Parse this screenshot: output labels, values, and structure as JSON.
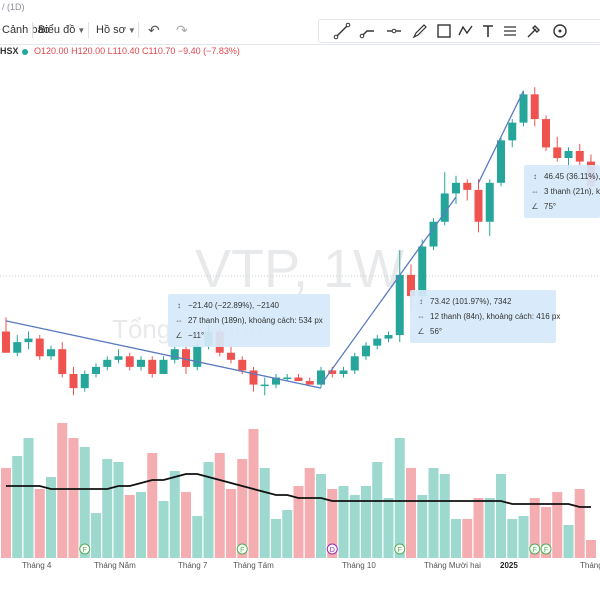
{
  "topline": {
    "text": "/ (1D)"
  },
  "toolbar": {
    "alert_label": "Cảnh báo",
    "chart_label": "Biểu đồ",
    "profile_label": "Hồ sơ",
    "undo_icon": "undo-icon",
    "redo_icon": "redo-icon"
  },
  "drawing_tools": [
    "trend-line-icon",
    "ray-icon",
    "horizontal-line-icon",
    "pen-icon",
    "rectangle-icon",
    "zigzag-icon",
    "text-icon",
    "fibonacci-icon",
    "pipette-icon",
    "circle-icon"
  ],
  "symbol": {
    "exchange": "HSX",
    "open": "O120.00",
    "high": "H120.00",
    "low": "L110.40",
    "close": "C110.70",
    "change": "−9.40 (−7.83%)"
  },
  "watermark": {
    "main": "VTP, 1W",
    "sub": "Tổng... chính"
  },
  "measurements": [
    {
      "l1": "−21.40 (−22.89%), −2140",
      "l2": "27 thanh (189n), khoảng cách: 534 px",
      "l3": "−11°"
    },
    {
      "l1": "73.42 (101.97%), 7342",
      "l2": "12 thanh (84n), khoảng cách: 416 px",
      "l3": "56°"
    },
    {
      "l1": "46.45 (36.11%), ",
      "l2": "3 thanh (21n), kh",
      "l3": "75°"
    }
  ],
  "x_labels": [
    "Tháng 4",
    "Tháng Năm",
    "Tháng 7",
    "Tháng Tám",
    "Tháng 10",
    "Tháng Mười hai",
    "2025",
    "Tháng"
  ],
  "event_markers": [
    "F",
    "F",
    "D",
    "F",
    "F",
    "F"
  ],
  "colors": {
    "up": "#26a69a",
    "down": "#ef5350",
    "vol_up": "#9ed9cf",
    "vol_down": "#f4adb0",
    "measure_bg": "#d6e9fa",
    "trend_line": "#5b7bc0"
  },
  "chart_data": {
    "type": "candlestick",
    "title": "VTP, 1W",
    "exchange": "HSX",
    "x_labels": [
      "Tháng 4",
      "Tháng Năm",
      "Tháng 7",
      "Tháng Tám",
      "Tháng 10",
      "Tháng Mười hai",
      "2025",
      "Tháng"
    ],
    "candles": [
      {
        "o": 70,
        "h": 74,
        "l": 64,
        "c": 64
      },
      {
        "o": 64,
        "h": 69,
        "l": 63,
        "c": 67
      },
      {
        "o": 67,
        "h": 70,
        "l": 65,
        "c": 68
      },
      {
        "o": 68,
        "h": 69,
        "l": 62,
        "c": 63
      },
      {
        "o": 63,
        "h": 66,
        "l": 62,
        "c": 65
      },
      {
        "o": 65,
        "h": 67,
        "l": 57,
        "c": 58
      },
      {
        "o": 58,
        "h": 60,
        "l": 52,
        "c": 54
      },
      {
        "o": 54,
        "h": 59,
        "l": 53,
        "c": 58
      },
      {
        "o": 58,
        "h": 61,
        "l": 57,
        "c": 60
      },
      {
        "o": 60,
        "h": 63,
        "l": 59,
        "c": 62
      },
      {
        "o": 62,
        "h": 65,
        "l": 61,
        "c": 63
      },
      {
        "o": 63,
        "h": 64,
        "l": 59,
        "c": 60
      },
      {
        "o": 60,
        "h": 63,
        "l": 59,
        "c": 62
      },
      {
        "o": 62,
        "h": 63,
        "l": 57,
        "c": 58
      },
      {
        "o": 58,
        "h": 63,
        "l": 58,
        "c": 62
      },
      {
        "o": 62,
        "h": 66,
        "l": 61,
        "c": 65
      },
      {
        "o": 65,
        "h": 66,
        "l": 58,
        "c": 60
      },
      {
        "o": 60,
        "h": 67,
        "l": 59,
        "c": 66
      },
      {
        "o": 66,
        "h": 72,
        "l": 65,
        "c": 70
      },
      {
        "o": 70,
        "h": 71,
        "l": 63,
        "c": 64
      },
      {
        "o": 64,
        "h": 66,
        "l": 61,
        "c": 62
      },
      {
        "o": 62,
        "h": 63,
        "l": 58,
        "c": 59
      },
      {
        "o": 59,
        "h": 60,
        "l": 53,
        "c": 55
      },
      {
        "o": 55,
        "h": 57,
        "l": 52,
        "c": 55
      },
      {
        "o": 55,
        "h": 58,
        "l": 54,
        "c": 57
      },
      {
        "o": 57,
        "h": 58,
        "l": 56,
        "c": 57
      },
      {
        "o": 57,
        "h": 58,
        "l": 56,
        "c": 56
      },
      {
        "o": 56,
        "h": 57,
        "l": 55,
        "c": 55
      },
      {
        "o": 55,
        "h": 60,
        "l": 54,
        "c": 59
      },
      {
        "o": 59,
        "h": 60,
        "l": 57,
        "c": 58
      },
      {
        "o": 58,
        "h": 60,
        "l": 57,
        "c": 59
      },
      {
        "o": 59,
        "h": 64,
        "l": 58,
        "c": 63
      },
      {
        "o": 63,
        "h": 67,
        "l": 62,
        "c": 66
      },
      {
        "o": 66,
        "h": 69,
        "l": 65,
        "c": 68
      },
      {
        "o": 68,
        "h": 70,
        "l": 67,
        "c": 69
      },
      {
        "o": 69,
        "h": 93,
        "l": 67,
        "c": 86
      },
      {
        "o": 86,
        "h": 89,
        "l": 76,
        "c": 80
      },
      {
        "o": 80,
        "h": 96,
        "l": 78,
        "c": 94
      },
      {
        "o": 94,
        "h": 102,
        "l": 93,
        "c": 101
      },
      {
        "o": 101,
        "h": 115,
        "l": 100,
        "c": 109
      },
      {
        "o": 109,
        "h": 114,
        "l": 106,
        "c": 112
      },
      {
        "o": 112,
        "h": 113,
        "l": 107,
        "c": 110
      },
      {
        "o": 110,
        "h": 113,
        "l": 98,
        "c": 101
      },
      {
        "o": 101,
        "h": 113,
        "l": 97,
        "c": 112
      },
      {
        "o": 112,
        "h": 125,
        "l": 111,
        "c": 124
      },
      {
        "o": 124,
        "h": 130,
        "l": 122,
        "c": 129
      },
      {
        "o": 129,
        "h": 138,
        "l": 128,
        "c": 137
      },
      {
        "o": 137,
        "h": 139,
        "l": 128,
        "c": 130
      },
      {
        "o": 130,
        "h": 131,
        "l": 121,
        "c": 122
      },
      {
        "o": 122,
        "h": 125,
        "l": 118,
        "c": 119
      },
      {
        "o": 119,
        "h": 122,
        "l": 116,
        "c": 121
      },
      {
        "o": 121,
        "h": 123,
        "l": 117,
        "c": 118
      },
      {
        "o": 118,
        "h": 120,
        "l": 110,
        "c": 111
      }
    ],
    "volume": [
      30,
      34,
      40,
      23,
      27,
      45,
      40,
      37,
      15,
      33,
      32,
      21,
      22,
      35,
      19,
      29,
      22,
      14,
      32,
      35,
      23,
      33,
      43,
      30,
      13,
      16,
      24,
      30,
      28,
      23,
      24,
      21,
      24,
      32,
      20,
      40,
      30,
      21,
      30,
      28,
      13,
      13,
      20,
      20,
      28,
      13,
      14,
      20,
      17,
      22,
      11,
      23,
      6
    ],
    "volume_ma": [
      24,
      24,
      24,
      24,
      23,
      23,
      23,
      23,
      23,
      23,
      24,
      24,
      25,
      26,
      26,
      27,
      28,
      28,
      27,
      26,
      25,
      24,
      23,
      22,
      21,
      21,
      20,
      20,
      20,
      19,
      19,
      19,
      19,
      19,
      19,
      19,
      19,
      19,
      19,
      19,
      19,
      19,
      19,
      19,
      19,
      18,
      18,
      18,
      18,
      18,
      18,
      17,
      17
    ],
    "trendlines": [
      {
        "from": [
          0,
          73
        ],
        "to": [
          28,
          54
        ]
      },
      {
        "from": [
          28,
          55
        ],
        "to": [
          40,
          108
        ]
      },
      {
        "from": [
          42,
          112
        ],
        "to": [
          46,
          138
        ]
      }
    ],
    "y_range": [
      45,
      145
    ]
  }
}
